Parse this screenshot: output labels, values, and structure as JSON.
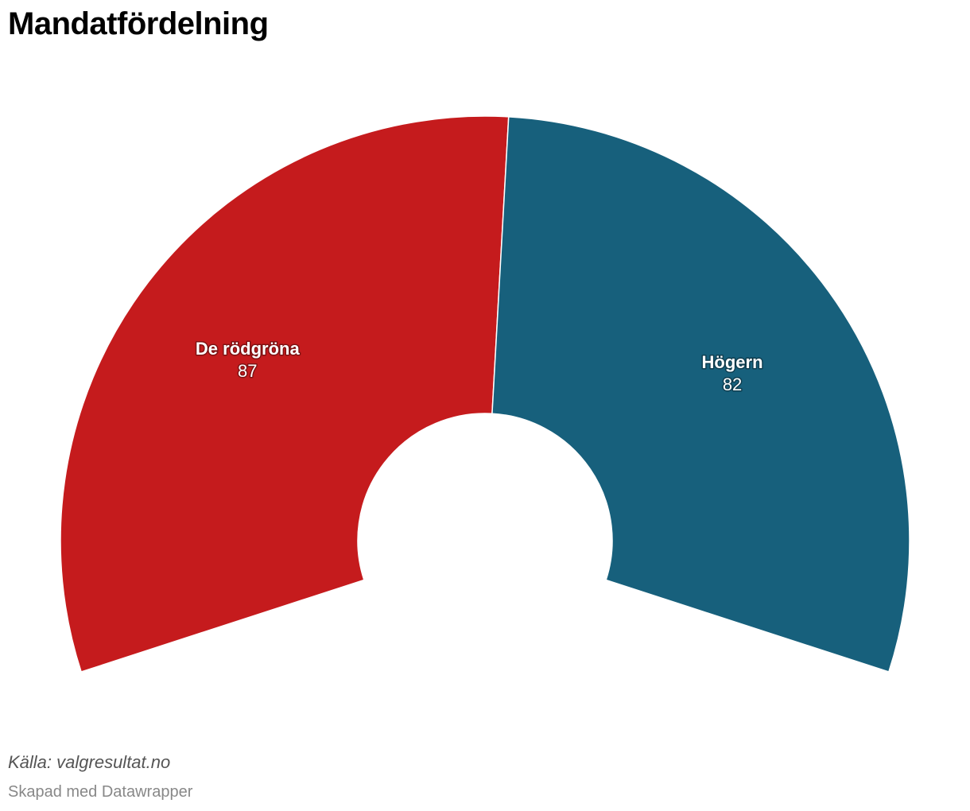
{
  "header": {
    "title": "Mandatfördelning"
  },
  "footer": {
    "source": "Källa: valgresultat.no",
    "credit": "Skapad med Datawrapper"
  },
  "chart_data": {
    "type": "pie",
    "title": "Mandatfördelning",
    "variant": "semi-donut (parliament arc)",
    "slices": [
      {
        "name": "De rödgröna",
        "value": 87,
        "color": "#c51b1d"
      },
      {
        "name": "Högern",
        "value": 82,
        "color": "#17607c"
      }
    ],
    "labels_inside": true,
    "legend": "none"
  }
}
